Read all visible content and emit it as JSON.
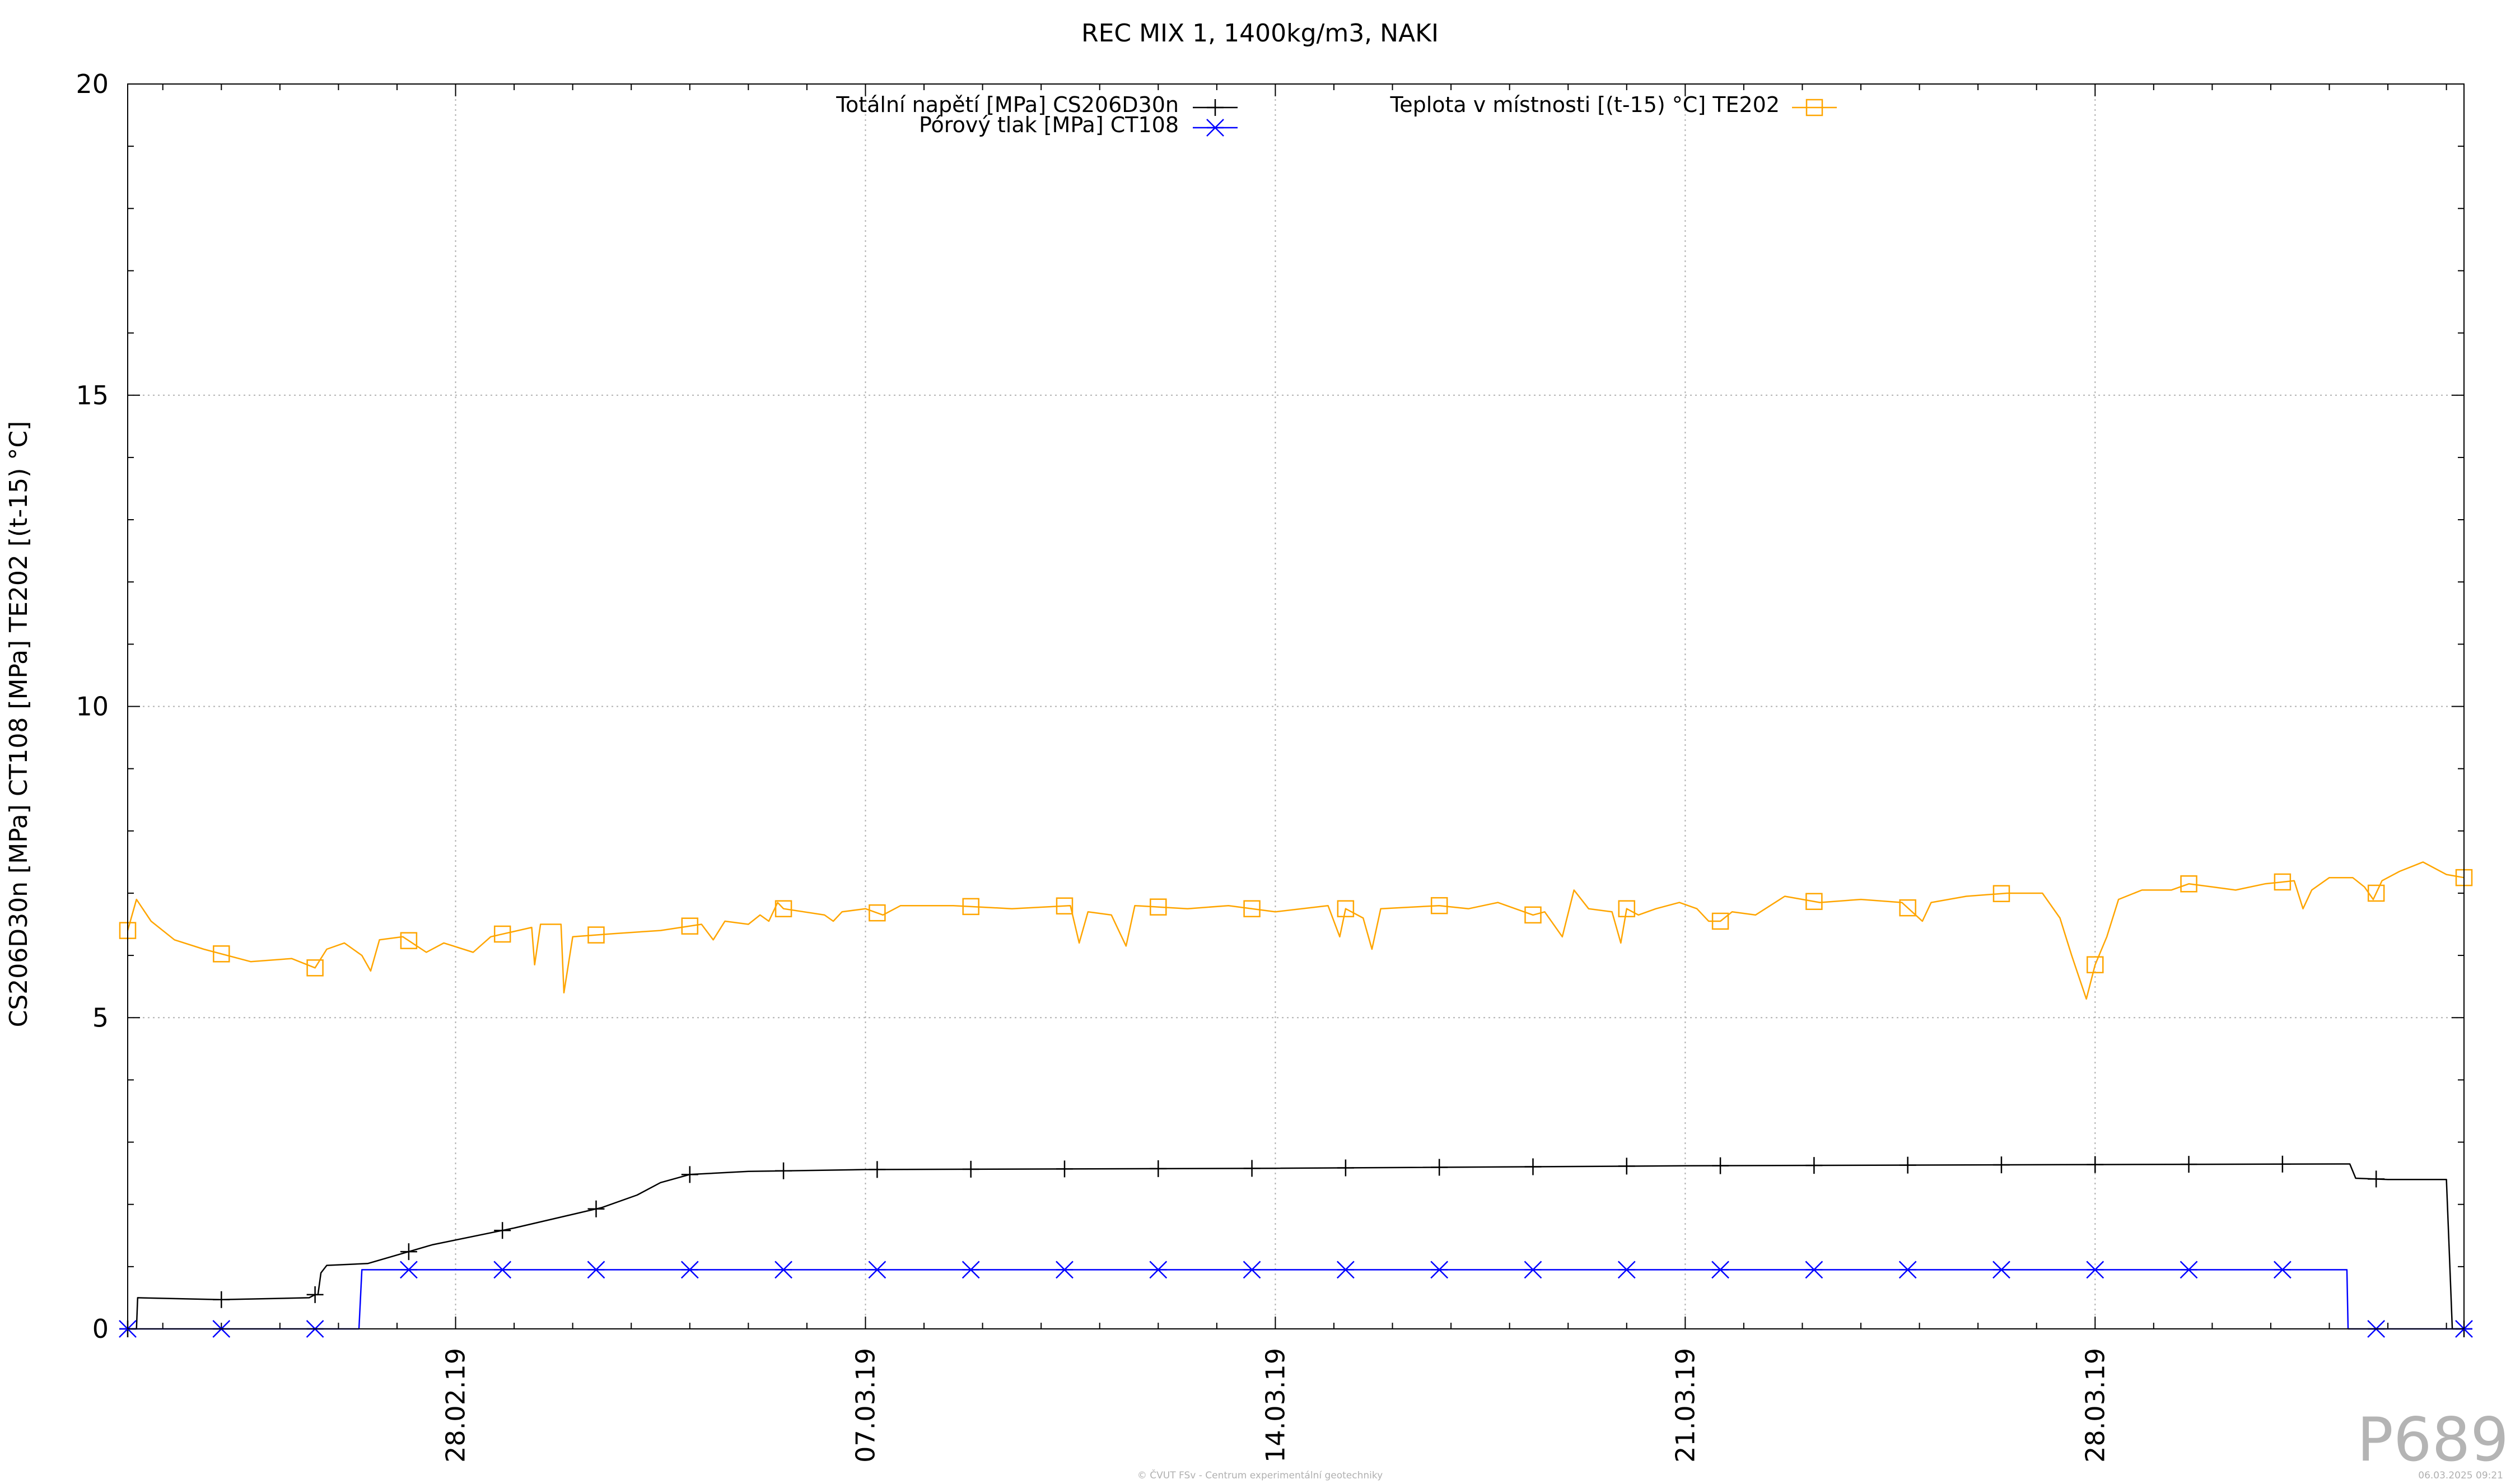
{
  "chart_data": {
    "type": "line",
    "title": "REC MIX 1, 1400kg/m3, NAKI",
    "ylabel": "CS206D30n [MPa] CT108 [MPa] TE202 [(t-15) °C]",
    "xlabel": "",
    "ylim": [
      0,
      20
    ],
    "yticks": [
      "0",
      "5",
      "10",
      "15",
      "20"
    ],
    "xlim_days": [
      -5.6,
      34.3
    ],
    "xticks": [
      {
        "label": "28.02.19",
        "day": 0
      },
      {
        "label": "07.03.19",
        "day": 7
      },
      {
        "label": "14.03.19",
        "day": 14
      },
      {
        "label": "21.03.19",
        "day": 21
      },
      {
        "label": "28.03.19",
        "day": 28
      }
    ],
    "grid": true,
    "legend_position": "top",
    "series": [
      {
        "name": "Totální napětí [MPa] CS206D30n",
        "color": "#000000",
        "marker": "plus",
        "points": [
          [
            -5.6,
            0.0
          ],
          [
            -5.45,
            0.0
          ],
          [
            -5.43,
            0.5
          ],
          [
            -4.0,
            0.47
          ],
          [
            -2.5,
            0.5
          ],
          [
            -2.4,
            0.55
          ],
          [
            -2.35,
            0.55
          ],
          [
            -2.3,
            0.9
          ],
          [
            -2.2,
            1.02
          ],
          [
            -1.5,
            1.05
          ],
          [
            -0.4,
            1.35
          ],
          [
            1.0,
            1.62
          ],
          [
            2.5,
            1.95
          ],
          [
            3.1,
            2.15
          ],
          [
            3.5,
            2.35
          ],
          [
            4.0,
            2.48
          ],
          [
            5.0,
            2.53
          ],
          [
            7.0,
            2.56
          ],
          [
            14.0,
            2.58
          ],
          [
            21.0,
            2.62
          ],
          [
            28.0,
            2.64
          ],
          [
            32.2,
            2.65
          ],
          [
            32.35,
            2.65
          ],
          [
            32.45,
            2.42
          ],
          [
            33.0,
            2.4
          ],
          [
            34.0,
            2.4
          ],
          [
            34.05,
            1.2
          ],
          [
            34.1,
            0.0
          ],
          [
            34.3,
            0.0
          ]
        ],
        "marker_days": [
          -5.6,
          -4.0,
          -2.4,
          -0.8,
          0.8,
          2.4,
          4.0,
          5.6,
          7.2,
          8.8,
          10.4,
          12.0,
          13.6,
          15.2,
          16.8,
          18.4,
          20.0,
          21.6,
          23.2,
          24.8,
          26.4,
          28.0,
          29.6,
          31.2,
          32.8,
          34.3
        ]
      },
      {
        "name": "Pórový tlak [MPa] CT108",
        "color": "#0000ff",
        "marker": "star",
        "points": [
          [
            -5.6,
            0.0
          ],
          [
            -1.65,
            0.0
          ],
          [
            -1.6,
            0.95
          ],
          [
            27.0,
            0.95
          ],
          [
            32.3,
            0.95
          ],
          [
            32.32,
            0.0
          ],
          [
            34.3,
            0.0
          ]
        ],
        "marker_days": [
          -5.6,
          -4.0,
          -2.4,
          -0.8,
          0.8,
          2.4,
          4.0,
          5.6,
          7.2,
          8.8,
          10.4,
          12.0,
          13.6,
          15.2,
          16.8,
          18.4,
          20.0,
          21.6,
          23.2,
          24.8,
          26.4,
          28.0,
          29.6,
          31.2,
          32.8,
          34.3
        ]
      },
      {
        "name": "Teplota v místnosti [(t-15) °C] TE202",
        "color": "#ffa500",
        "marker": "square",
        "points": [
          [
            -5.6,
            6.4
          ],
          [
            -5.45,
            6.9
          ],
          [
            -5.2,
            6.55
          ],
          [
            -4.8,
            6.25
          ],
          [
            -4.3,
            6.1
          ],
          [
            -3.5,
            5.9
          ],
          [
            -2.8,
            5.95
          ],
          [
            -2.4,
            5.8
          ],
          [
            -2.2,
            6.1
          ],
          [
            -1.9,
            6.2
          ],
          [
            -1.6,
            6.0
          ],
          [
            -1.45,
            5.75
          ],
          [
            -1.3,
            6.25
          ],
          [
            -0.9,
            6.3
          ],
          [
            -0.5,
            6.05
          ],
          [
            -0.2,
            6.2
          ],
          [
            0.3,
            6.05
          ],
          [
            0.6,
            6.3
          ],
          [
            1.3,
            6.45
          ],
          [
            1.35,
            5.85
          ],
          [
            1.45,
            6.5
          ],
          [
            1.8,
            6.5
          ],
          [
            1.85,
            5.4
          ],
          [
            2.0,
            6.3
          ],
          [
            2.7,
            6.35
          ],
          [
            3.5,
            6.4
          ],
          [
            4.2,
            6.5
          ],
          [
            4.4,
            6.25
          ],
          [
            4.6,
            6.55
          ],
          [
            5.0,
            6.5
          ],
          [
            5.2,
            6.65
          ],
          [
            5.35,
            6.55
          ],
          [
            5.5,
            6.85
          ],
          [
            5.6,
            6.75
          ],
          [
            6.3,
            6.65
          ],
          [
            6.45,
            6.55
          ],
          [
            6.6,
            6.7
          ],
          [
            7.0,
            6.75
          ],
          [
            7.3,
            6.65
          ],
          [
            7.6,
            6.8
          ],
          [
            8.5,
            6.8
          ],
          [
            9.5,
            6.75
          ],
          [
            10.5,
            6.8
          ],
          [
            10.65,
            6.2
          ],
          [
            10.8,
            6.7
          ],
          [
            11.2,
            6.65
          ],
          [
            11.45,
            6.15
          ],
          [
            11.6,
            6.8
          ],
          [
            12.5,
            6.75
          ],
          [
            13.2,
            6.8
          ],
          [
            14.0,
            6.7
          ],
          [
            14.9,
            6.8
          ],
          [
            15.1,
            6.3
          ],
          [
            15.2,
            6.75
          ],
          [
            15.5,
            6.6
          ],
          [
            15.65,
            6.1
          ],
          [
            15.8,
            6.75
          ],
          [
            16.8,
            6.8
          ],
          [
            17.3,
            6.75
          ],
          [
            17.8,
            6.85
          ],
          [
            18.4,
            6.65
          ],
          [
            18.6,
            6.7
          ],
          [
            18.9,
            6.3
          ],
          [
            19.1,
            7.05
          ],
          [
            19.35,
            6.75
          ],
          [
            19.75,
            6.7
          ],
          [
            19.9,
            6.2
          ],
          [
            20.0,
            6.75
          ],
          [
            20.2,
            6.65
          ],
          [
            20.5,
            6.75
          ],
          [
            20.9,
            6.85
          ],
          [
            21.2,
            6.75
          ],
          [
            21.4,
            6.55
          ],
          [
            21.6,
            6.55
          ],
          [
            21.8,
            6.7
          ],
          [
            22.2,
            6.65
          ],
          [
            22.7,
            6.95
          ],
          [
            23.3,
            6.85
          ],
          [
            24.0,
            6.9
          ],
          [
            24.7,
            6.85
          ],
          [
            25.05,
            6.55
          ],
          [
            25.2,
            6.85
          ],
          [
            25.8,
            6.95
          ],
          [
            26.5,
            7.0
          ],
          [
            27.1,
            7.0
          ],
          [
            27.4,
            6.6
          ],
          [
            27.6,
            6.0
          ],
          [
            27.85,
            5.3
          ],
          [
            28.0,
            5.85
          ],
          [
            28.2,
            6.3
          ],
          [
            28.4,
            6.9
          ],
          [
            28.8,
            7.05
          ],
          [
            29.3,
            7.05
          ],
          [
            29.6,
            7.15
          ],
          [
            30.0,
            7.1
          ],
          [
            30.4,
            7.05
          ],
          [
            30.9,
            7.15
          ],
          [
            31.4,
            7.2
          ],
          [
            31.55,
            6.75
          ],
          [
            31.7,
            7.05
          ],
          [
            32.0,
            7.25
          ],
          [
            32.4,
            7.25
          ],
          [
            32.6,
            7.1
          ],
          [
            32.75,
            6.9
          ],
          [
            32.9,
            7.2
          ],
          [
            33.2,
            7.35
          ],
          [
            33.6,
            7.5
          ],
          [
            34.0,
            7.3
          ],
          [
            34.3,
            7.25
          ]
        ],
        "marker_days": [
          -5.6,
          -4.0,
          -2.4,
          -0.8,
          0.8,
          2.4,
          4.0,
          5.6,
          7.2,
          8.8,
          10.4,
          12.0,
          13.6,
          15.2,
          16.8,
          18.4,
          20.0,
          21.6,
          23.2,
          24.8,
          26.4,
          28.0,
          29.6,
          31.2,
          32.8,
          34.3
        ]
      }
    ]
  },
  "watermark": "P689",
  "footer_center": "© ČVUT FSv - Centrum experimentální geotechniky",
  "footer_right": "06.03.2025 09:21"
}
